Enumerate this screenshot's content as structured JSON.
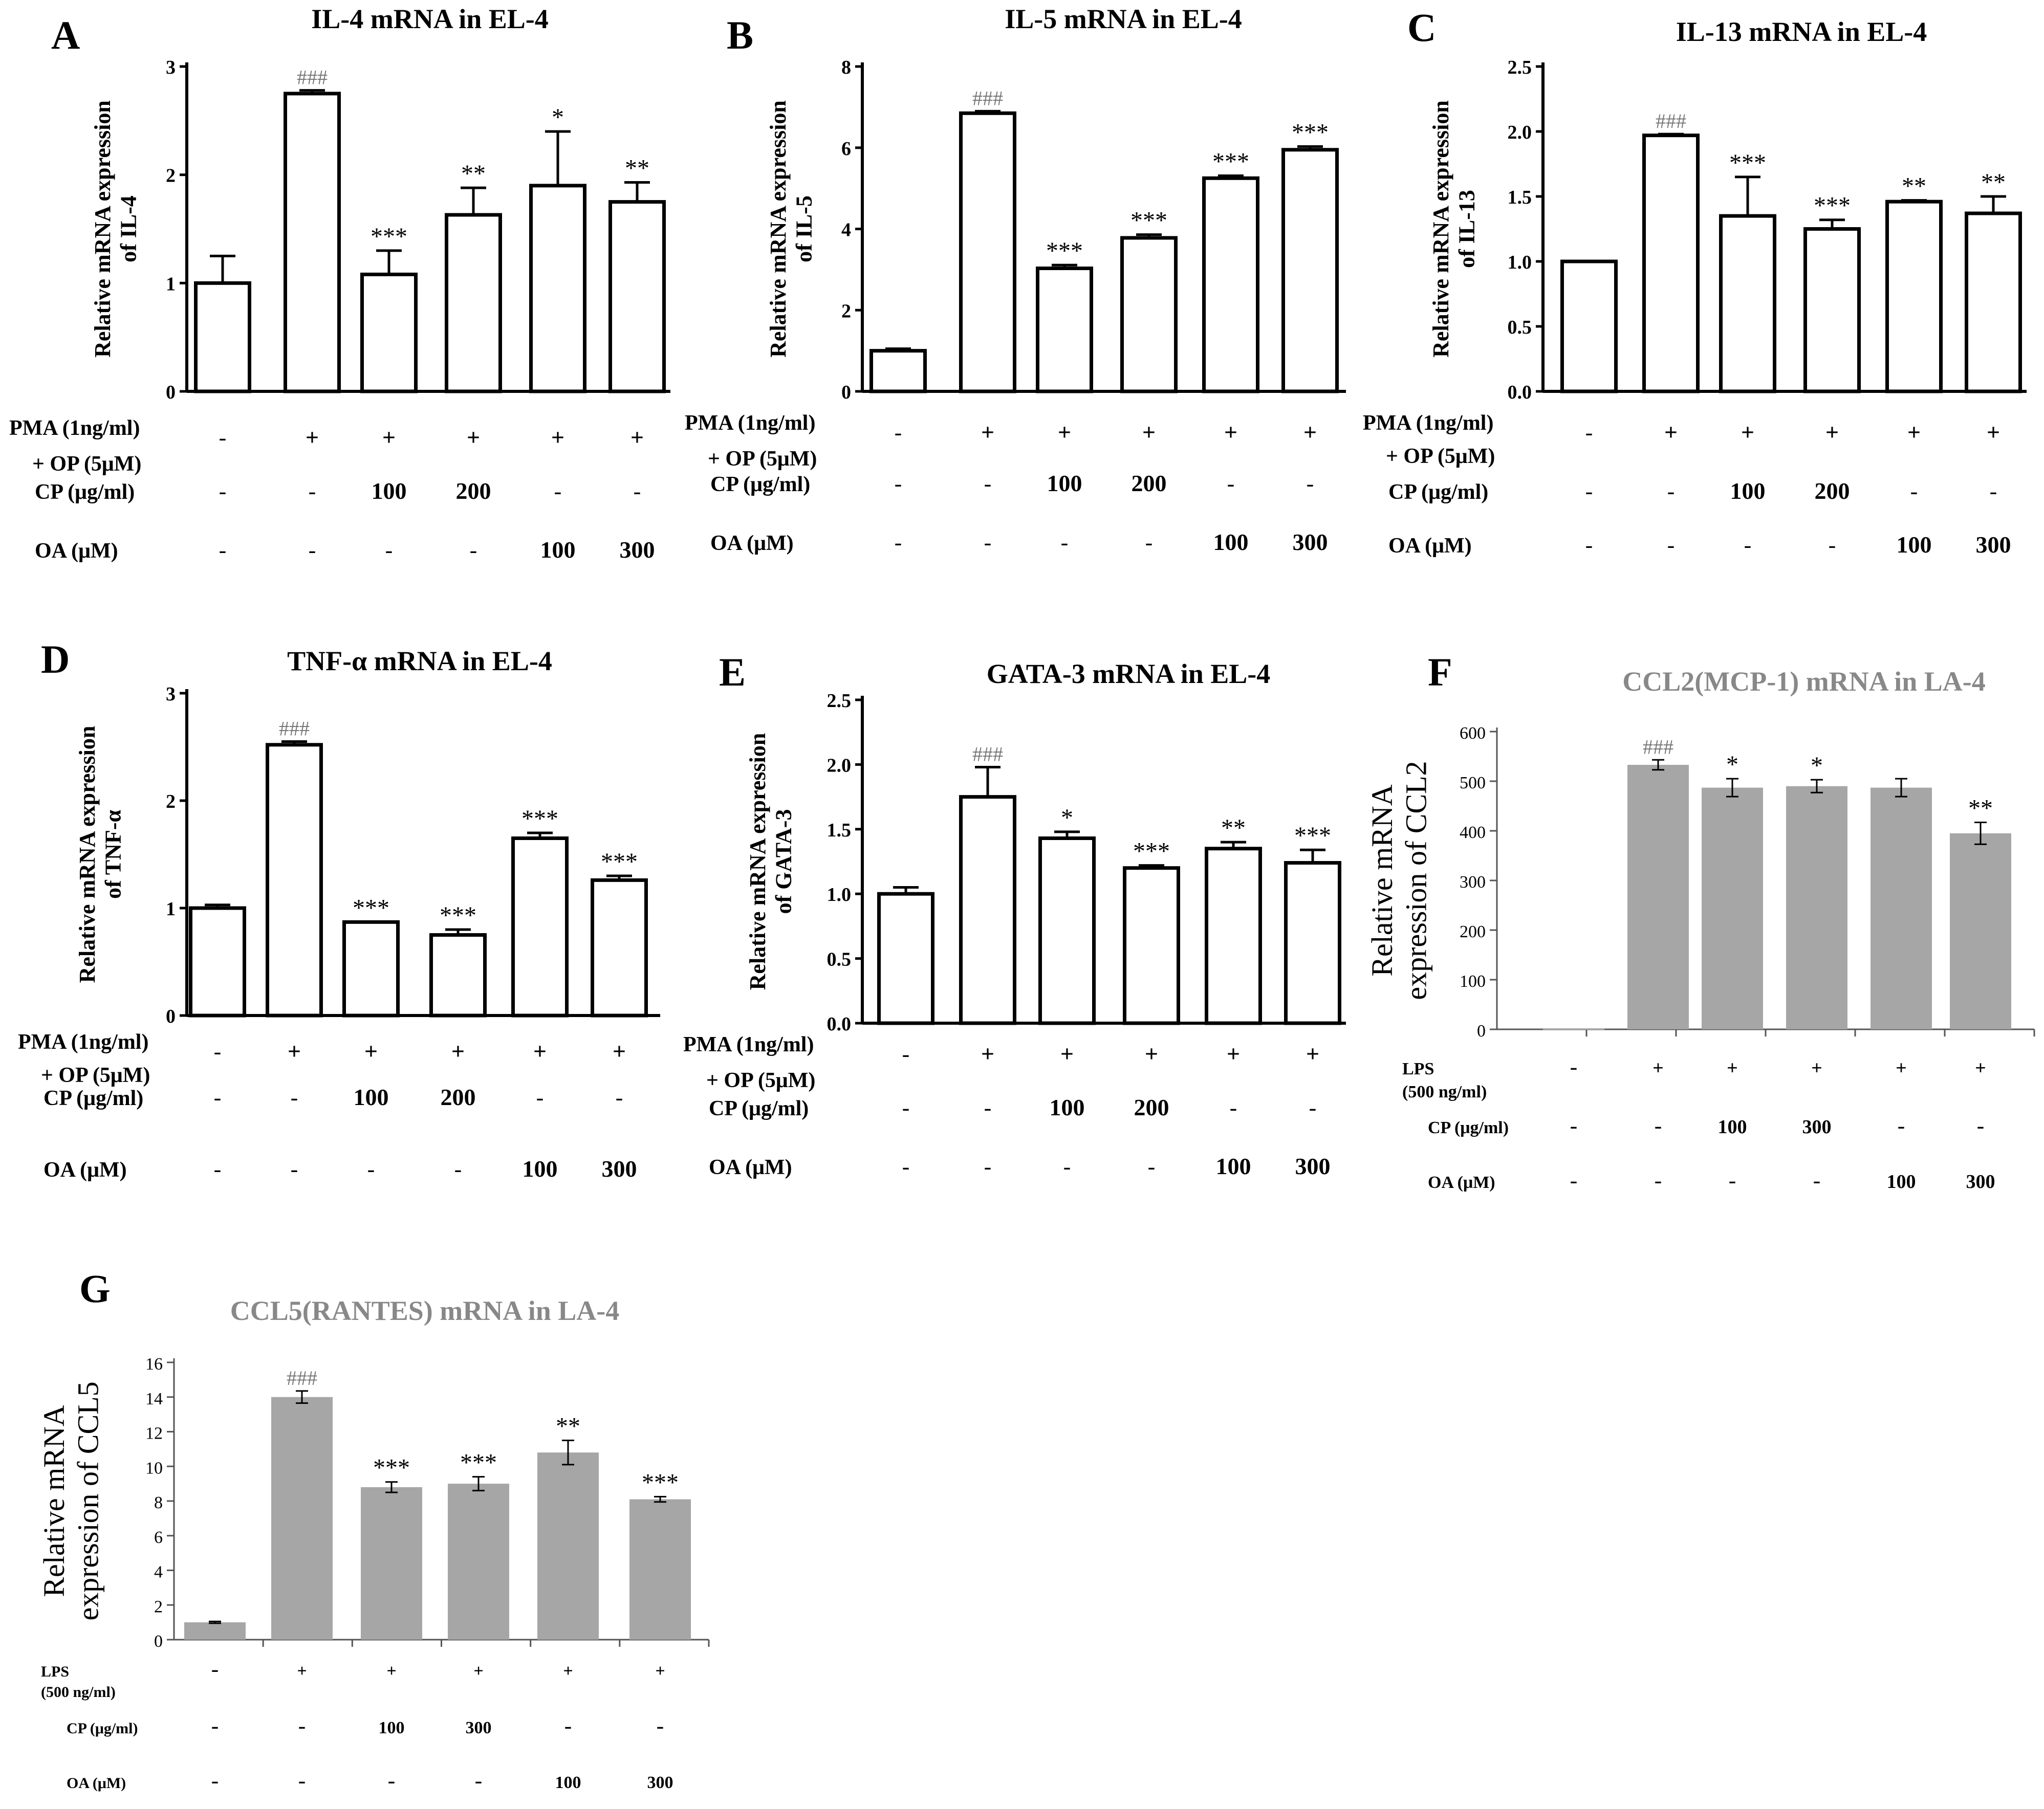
{
  "figure": {
    "description": "Relative mRNA expression panels A-G"
  },
  "chart_data": [
    {
      "panel": "A",
      "type": "bar",
      "style": "outline",
      "title": "IL-4 mRNA in EL-4",
      "ylabel": [
        "Relative mRNA expression",
        "of IL-4"
      ],
      "ylim": [
        0,
        3
      ],
      "yticks": [
        0,
        1,
        2,
        3
      ],
      "ytick_labels": [
        "0",
        "1",
        "2",
        "3"
      ],
      "values": [
        1.0,
        2.75,
        1.08,
        1.63,
        1.9,
        1.75
      ],
      "errors": [
        0.25,
        0.03,
        0.22,
        0.25,
        0.5,
        0.18
      ],
      "significance": [
        "",
        "###",
        "***",
        "**",
        "*",
        "**"
      ],
      "conditions": [
        {
          "label": "PMA (1ng/ml)",
          "label2": "+ OP (5μM)",
          "values": [
            "-",
            "+",
            "+",
            "+",
            "+",
            "+"
          ]
        },
        {
          "label": "CP (μg/ml)",
          "values": [
            "-",
            "-",
            "100",
            "200",
            "-",
            "-"
          ]
        },
        {
          "label": "OA (μM)",
          "values": [
            "-",
            "-",
            "-",
            "-",
            "100",
            "300"
          ]
        }
      ]
    },
    {
      "panel": "B",
      "type": "bar",
      "style": "outline",
      "title": "IL-5 mRNA in EL-4",
      "ylabel": [
        "Relative mRNA expression",
        "of IL-5"
      ],
      "ylim": [
        0,
        8
      ],
      "yticks": [
        0,
        2,
        4,
        6,
        8
      ],
      "ytick_labels": [
        "0",
        "2",
        "4",
        "6",
        "8"
      ],
      "values": [
        1.0,
        6.85,
        3.03,
        3.78,
        5.25,
        5.95
      ],
      "errors": [
        0.05,
        0.05,
        0.08,
        0.08,
        0.06,
        0.08
      ],
      "significance": [
        "",
        "###",
        "***",
        "***",
        "***",
        "***"
      ],
      "conditions": [
        {
          "label": "PMA (1ng/ml)",
          "label2": "+ OP (5μM)",
          "values": [
            "-",
            "+",
            "+",
            "+",
            "+",
            "+"
          ]
        },
        {
          "label": "CP (μg/ml)",
          "values": [
            "-",
            "-",
            "100",
            "200",
            "-",
            "-"
          ]
        },
        {
          "label": "OA (μM)",
          "values": [
            "-",
            "-",
            "-",
            "-",
            "100",
            "300"
          ]
        }
      ]
    },
    {
      "panel": "C",
      "type": "bar",
      "style": "outline",
      "title": "IL-13 mRNA in EL-4",
      "ylabel": [
        "Relative mRNA expression",
        "of IL-13"
      ],
      "ylim": [
        0,
        2.5
      ],
      "yticks": [
        0,
        0.5,
        1.0,
        1.5,
        2.0,
        2.5
      ],
      "ytick_labels": [
        "0.0",
        "0.5",
        "1.0",
        "1.5",
        "2.0",
        "2.5"
      ],
      "values": [
        1.0,
        1.97,
        1.35,
        1.25,
        1.46,
        1.37
      ],
      "errors": [
        0.0,
        0.01,
        0.3,
        0.07,
        0.01,
        0.13
      ],
      "significance": [
        "",
        "###",
        "***",
        "***",
        "**",
        "**"
      ],
      "conditions": [
        {
          "label": "PMA (1ng/ml)",
          "label2": "+ OP (5μM)",
          "values": [
            "-",
            "+",
            "+",
            "+",
            "+",
            "+"
          ]
        },
        {
          "label": "CP (μg/ml)",
          "values": [
            "-",
            "-",
            "100",
            "200",
            "-",
            "-"
          ]
        },
        {
          "label": "OA (μM)",
          "values": [
            "-",
            "-",
            "-",
            "-",
            "100",
            "300"
          ]
        }
      ]
    },
    {
      "panel": "D",
      "type": "bar",
      "style": "outline",
      "title": "TNF-α mRNA in EL-4",
      "ylabel": [
        "Relative mRNA expression",
        "of TNF-α"
      ],
      "ylim": [
        0,
        3
      ],
      "yticks": [
        0,
        1,
        2,
        3
      ],
      "ytick_labels": [
        "0",
        "1",
        "2",
        "3"
      ],
      "values": [
        1.0,
        2.52,
        0.87,
        0.75,
        1.65,
        1.26
      ],
      "errors": [
        0.03,
        0.03,
        0.0,
        0.05,
        0.05,
        0.04
      ],
      "significance": [
        "",
        "###",
        "***",
        "***",
        "***",
        "***"
      ],
      "conditions": [
        {
          "label": "PMA (1ng/ml)",
          "label2": "+ OP (5μM)",
          "values": [
            "-",
            "+",
            "+",
            "+",
            "+",
            "+"
          ]
        },
        {
          "label": "CP (μg/ml)",
          "values": [
            "-",
            "-",
            "100",
            "200",
            "-",
            "-"
          ]
        },
        {
          "label": "OA (μM)",
          "values": [
            "-",
            "-",
            "-",
            "-",
            "100",
            "300"
          ]
        }
      ]
    },
    {
      "panel": "E",
      "type": "bar",
      "style": "outline",
      "title": "GATA-3 mRNA in EL-4",
      "ylabel": [
        "Relative mRNA expression",
        "of GATA-3"
      ],
      "ylim": [
        0,
        2.5
      ],
      "yticks": [
        0,
        0.5,
        1.0,
        1.5,
        2.0,
        2.5
      ],
      "ytick_labels": [
        "0.0",
        "0.5",
        "1.0",
        "1.5",
        "2.0",
        "2.5"
      ],
      "values": [
        1.0,
        1.75,
        1.43,
        1.2,
        1.35,
        1.24
      ],
      "errors": [
        0.05,
        0.23,
        0.05,
        0.02,
        0.05,
        0.1
      ],
      "significance": [
        "",
        "###",
        "*",
        "***",
        "**",
        "***"
      ],
      "conditions": [
        {
          "label": "PMA (1ng/ml)",
          "label2": "+ OP (5μM)",
          "values": [
            "-",
            "+",
            "+",
            "+",
            "+",
            "+"
          ]
        },
        {
          "label": "CP (μg/ml)",
          "values": [
            "-",
            "-",
            "100",
            "200",
            "-",
            "-"
          ]
        },
        {
          "label": "OA (μM)",
          "values": [
            "-",
            "-",
            "-",
            "-",
            "100",
            "300"
          ]
        }
      ]
    },
    {
      "panel": "F",
      "type": "bar",
      "style": "filled",
      "title": "CCL2(MCP-1) mRNA in LA-4",
      "ylabel": [
        "Relative mRNA",
        "expression of CCL2"
      ],
      "ylim": [
        0,
        600
      ],
      "yticks": [
        0,
        100,
        200,
        300,
        400,
        500,
        600
      ],
      "ytick_labels": [
        "0",
        "100",
        "200",
        "300",
        "400",
        "500",
        "600"
      ],
      "values": [
        1,
        533,
        487,
        490,
        487,
        395
      ],
      "errors": [
        0,
        10,
        18,
        13,
        18,
        22
      ],
      "significance": [
        "",
        "###",
        "*",
        "*",
        "",
        "**"
      ],
      "conditions": [
        {
          "label": "LPS",
          "label2": "(500 ng/ml)",
          "values": [
            "-",
            "+",
            "+",
            "+",
            "+",
            "+"
          ]
        },
        {
          "label": "CP (μg/ml)",
          "values": [
            "-",
            "-",
            "100",
            "300",
            "-",
            "-"
          ]
        },
        {
          "label": "OA (μM)",
          "values": [
            "-",
            "-",
            "-",
            "-",
            "100",
            "300"
          ]
        }
      ]
    },
    {
      "panel": "G",
      "type": "bar",
      "style": "filled",
      "title": "CCL5(RANTES) mRNA in LA-4",
      "ylabel": [
        "Relative mRNA",
        "expression of CCL5"
      ],
      "ylim": [
        0,
        16
      ],
      "yticks": [
        0,
        2,
        4,
        6,
        8,
        10,
        12,
        14,
        16
      ],
      "ytick_labels": [
        "0",
        "2",
        "4",
        "6",
        "8",
        "10",
        "12",
        "14",
        "16"
      ],
      "values": [
        1.0,
        14.0,
        8.8,
        9.0,
        10.8,
        8.1
      ],
      "errors": [
        0.05,
        0.35,
        0.3,
        0.4,
        0.7,
        0.15
      ],
      "significance": [
        "",
        "###",
        "***",
        "***",
        "**",
        "***"
      ],
      "conditions": [
        {
          "label": "LPS",
          "label2": "(500 ng/ml)",
          "values": [
            "-",
            "+",
            "+",
            "+",
            "+",
            "+"
          ]
        },
        {
          "label": "CP (μg/ml)",
          "values": [
            "-",
            "-",
            "100",
            "300",
            "-",
            "-"
          ]
        },
        {
          "label": "OA (μM)",
          "values": [
            "-",
            "-",
            "-",
            "-",
            "100",
            "300"
          ]
        }
      ]
    }
  ]
}
